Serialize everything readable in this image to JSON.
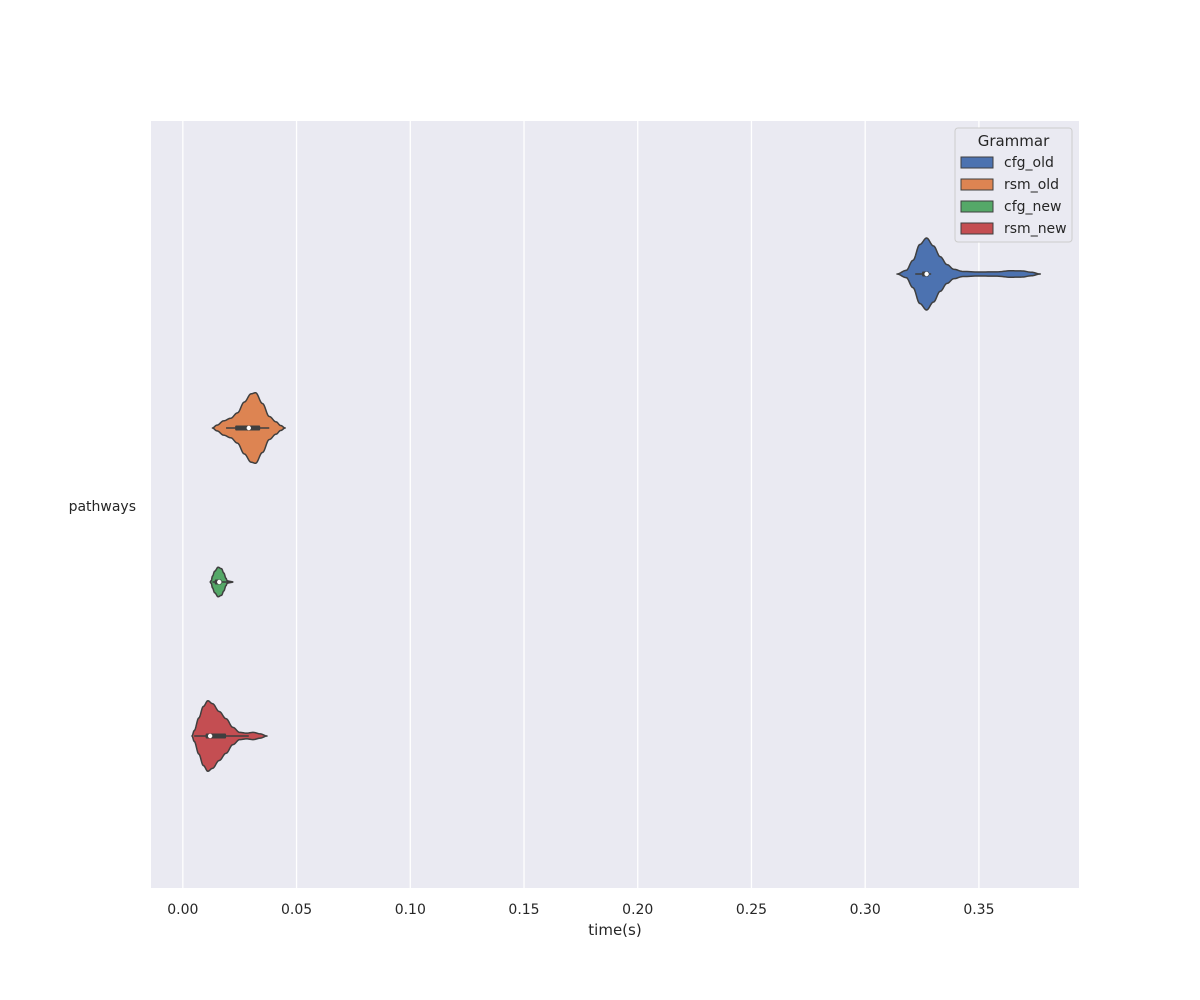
{
  "chart_data": {
    "type": "violin",
    "orientation": "horizontal",
    "xlabel": "time(s)",
    "ylabel": "",
    "xlim": [
      -0.014,
      0.394
    ],
    "xticks": [
      "0.00",
      "0.05",
      "0.10",
      "0.15",
      "0.20",
      "0.25",
      "0.30",
      "0.35"
    ],
    "xtick_values": [
      0.0,
      0.05,
      0.1,
      0.15,
      0.2,
      0.25,
      0.3,
      0.35
    ],
    "categories": [
      "pathways"
    ],
    "grid": true,
    "legend": {
      "title": "Grammar",
      "placement": "top-right",
      "entries": [
        "cfg_old",
        "rsm_old",
        "cfg_new",
        "rsm_new"
      ]
    },
    "series": [
      {
        "name": "cfg_old",
        "color": "#4c72b0",
        "median": 0.327,
        "q1": 0.325,
        "q3": 0.328,
        "whisker_low": 0.322,
        "whisker_high": 0.329,
        "density": [
          [
            0.314,
            0.0
          ],
          [
            0.318,
            0.1
          ],
          [
            0.321,
            0.38
          ],
          [
            0.324,
            0.82
          ],
          [
            0.327,
            1.0
          ],
          [
            0.33,
            0.78
          ],
          [
            0.333,
            0.48
          ],
          [
            0.336,
            0.26
          ],
          [
            0.339,
            0.13
          ],
          [
            0.343,
            0.07
          ],
          [
            0.35,
            0.055
          ],
          [
            0.358,
            0.06
          ],
          [
            0.364,
            0.09
          ],
          [
            0.369,
            0.085
          ],
          [
            0.373,
            0.05
          ],
          [
            0.377,
            0.0
          ]
        ]
      },
      {
        "name": "rsm_old",
        "color": "#dd8452",
        "median": 0.029,
        "q1": 0.023,
        "q3": 0.034,
        "whisker_low": 0.019,
        "whisker_high": 0.038,
        "density": [
          [
            0.013,
            0.0
          ],
          [
            0.015,
            0.08
          ],
          [
            0.018,
            0.2
          ],
          [
            0.021,
            0.27
          ],
          [
            0.024,
            0.42
          ],
          [
            0.027,
            0.72
          ],
          [
            0.03,
            0.95
          ],
          [
            0.032,
            0.98
          ],
          [
            0.035,
            0.68
          ],
          [
            0.038,
            0.32
          ],
          [
            0.041,
            0.17
          ],
          [
            0.043,
            0.07
          ],
          [
            0.045,
            0.0
          ]
        ]
      },
      {
        "name": "cfg_new",
        "color": "#55a868",
        "median": 0.016,
        "q1": 0.014,
        "q3": 0.017,
        "whisker_low": 0.013,
        "whisker_high": 0.022,
        "density": [
          [
            0.012,
            0.0
          ],
          [
            0.0125,
            0.04
          ],
          [
            0.013,
            0.16
          ],
          [
            0.014,
            0.3
          ],
          [
            0.0155,
            0.41
          ],
          [
            0.017,
            0.37
          ],
          [
            0.018,
            0.25
          ],
          [
            0.019,
            0.1
          ],
          [
            0.0195,
            0.035
          ],
          [
            0.0205,
            0.02
          ],
          [
            0.0215,
            0.01
          ],
          [
            0.022,
            0.0
          ]
        ]
      },
      {
        "name": "rsm_new",
        "color": "#c44e52",
        "median": 0.012,
        "q1": 0.01,
        "q3": 0.019,
        "whisker_low": 0.005,
        "whisker_high": 0.029,
        "density": [
          [
            0.004,
            0.0
          ],
          [
            0.005,
            0.15
          ],
          [
            0.007,
            0.5
          ],
          [
            0.009,
            0.82
          ],
          [
            0.011,
            0.98
          ],
          [
            0.013,
            0.9
          ],
          [
            0.016,
            0.68
          ],
          [
            0.019,
            0.48
          ],
          [
            0.022,
            0.24
          ],
          [
            0.025,
            0.1
          ],
          [
            0.028,
            0.08
          ],
          [
            0.031,
            0.1
          ],
          [
            0.034,
            0.06
          ],
          [
            0.037,
            0.0
          ]
        ]
      }
    ]
  }
}
